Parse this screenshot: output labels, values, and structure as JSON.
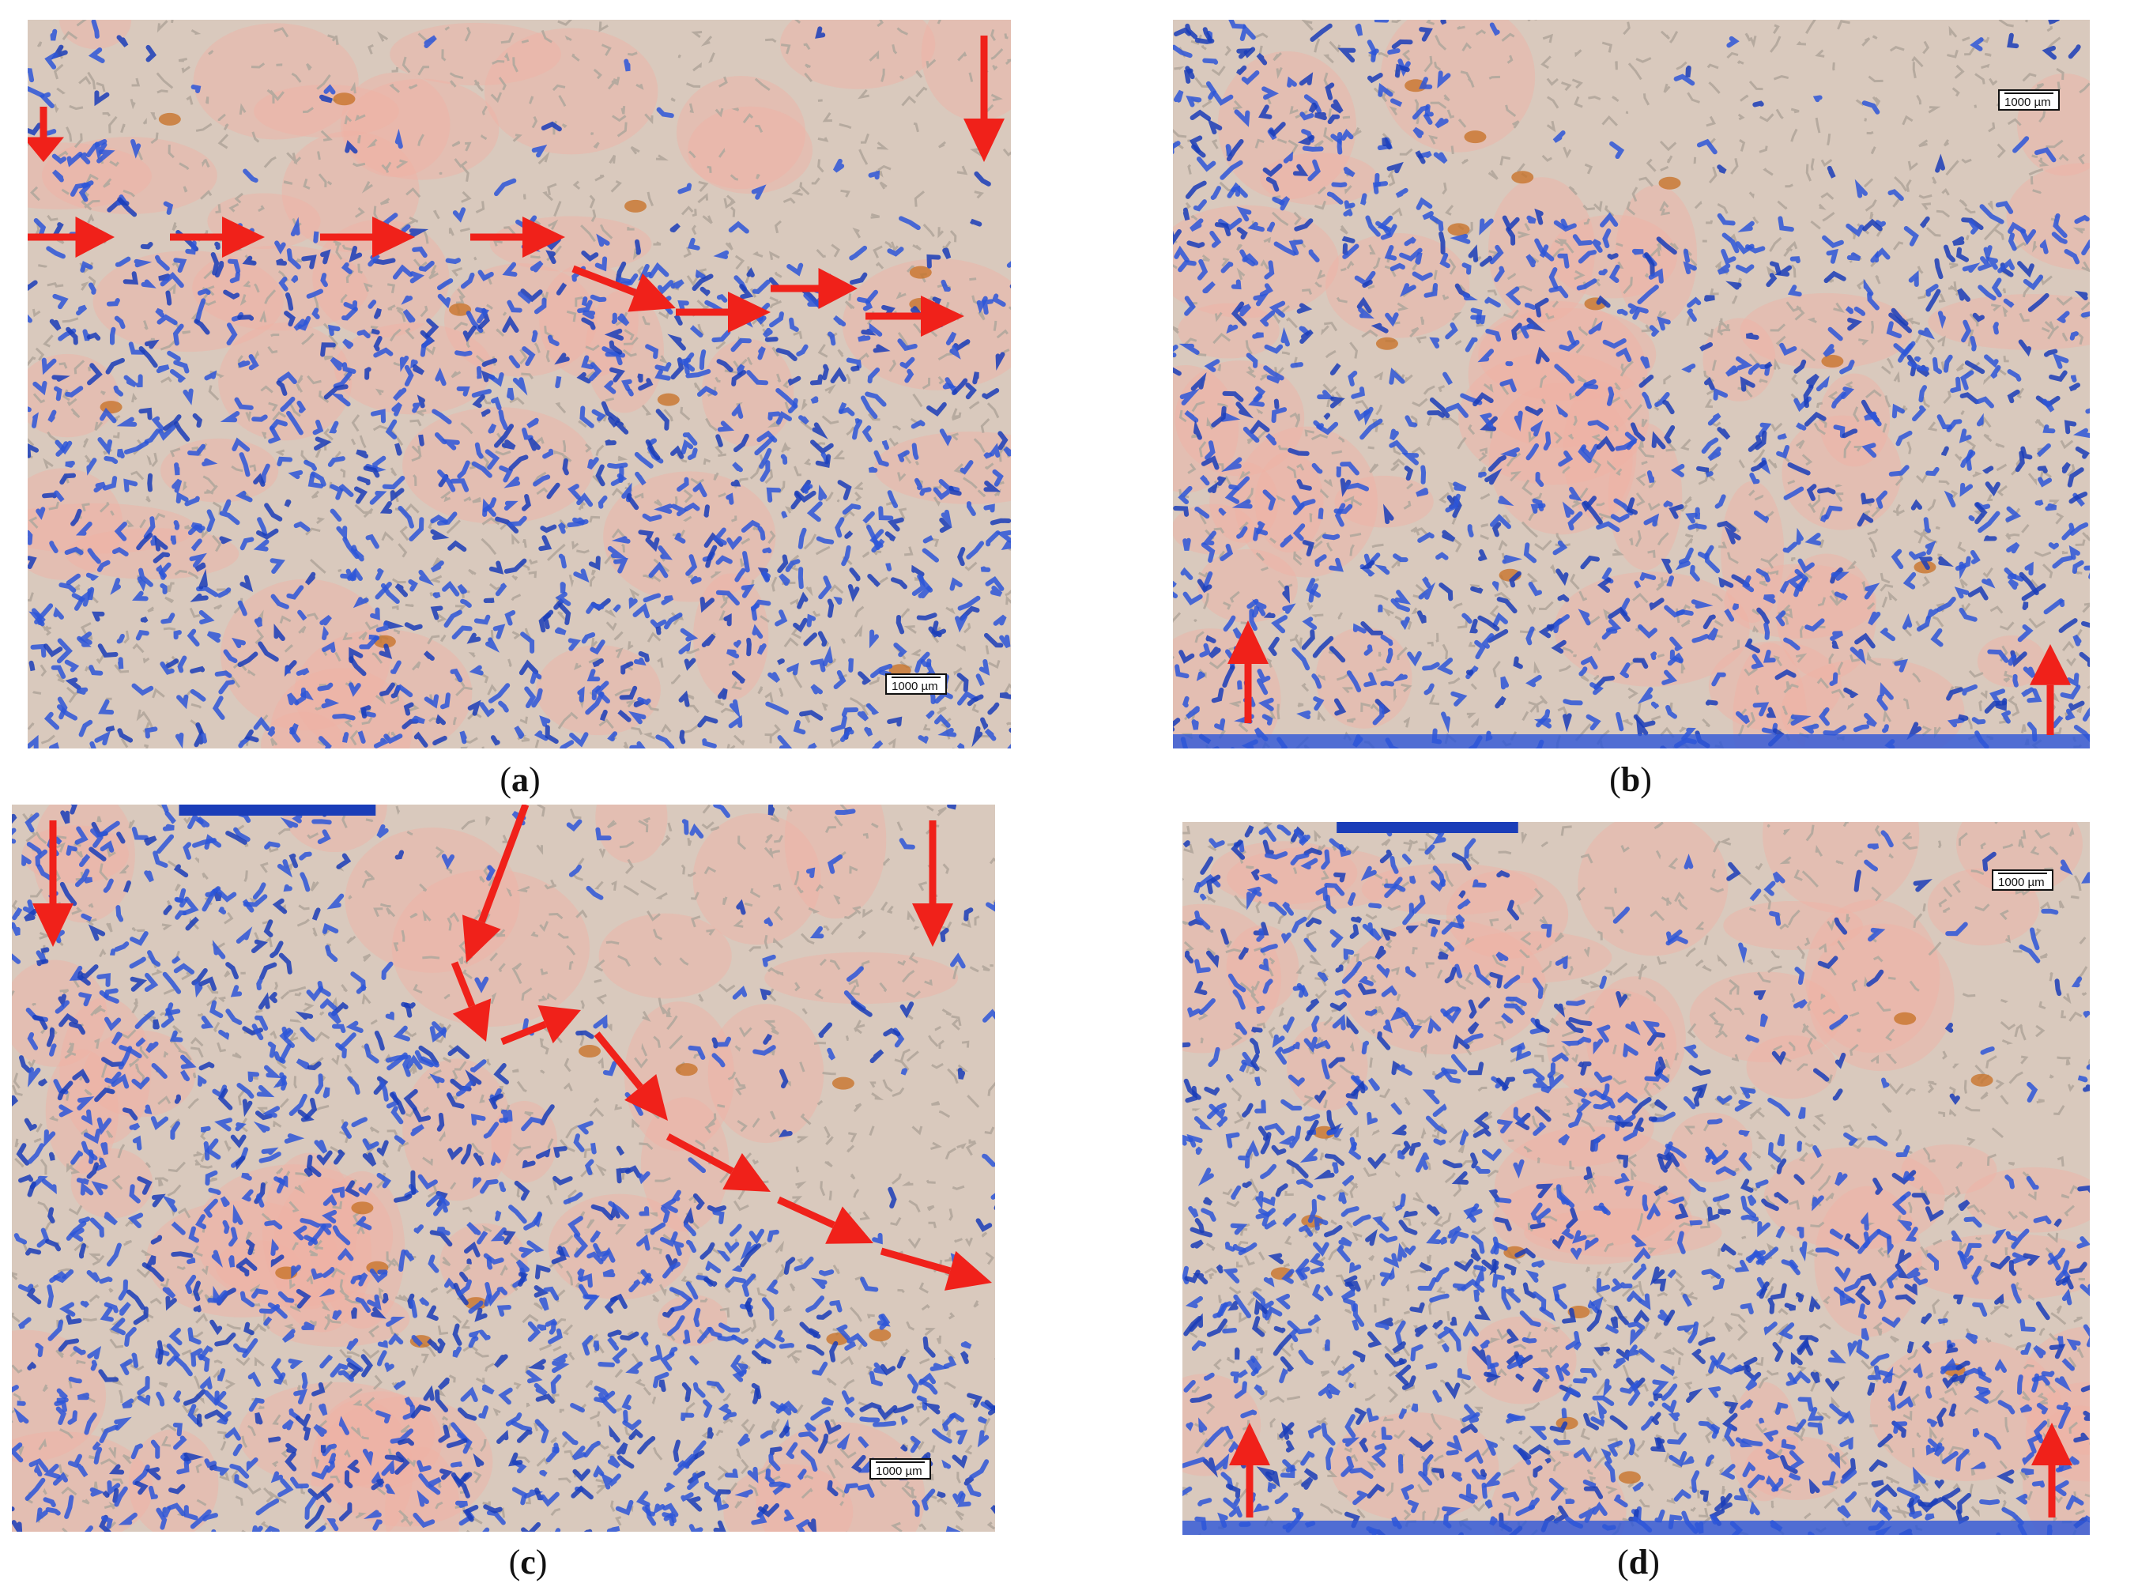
{
  "panels": [
    {
      "id": "a",
      "caption_open": "(",
      "caption_letter": "a",
      "caption_close": ")",
      "scale_label": "1000 µm"
    },
    {
      "id": "b",
      "caption_open": "(",
      "caption_letter": "b",
      "caption_close": ")",
      "scale_label": "1000 µm"
    },
    {
      "id": "c",
      "caption_open": "(",
      "caption_letter": "c",
      "caption_close": ")",
      "scale_label": "1000 µm"
    },
    {
      "id": "d",
      "caption_open": "(",
      "caption_letter": "d",
      "caption_close": ")",
      "scale_label": "1000 µm"
    }
  ],
  "colors": {
    "background_beige": "#d9c9bd",
    "pink_region": "#efb2a4",
    "grain_grey": "#b6aa9f",
    "dye_blue": "#2d56d8",
    "dark_blue": "#1a3db8",
    "arrow_red": "#f0211a",
    "orange_defect": "#c8742c"
  }
}
